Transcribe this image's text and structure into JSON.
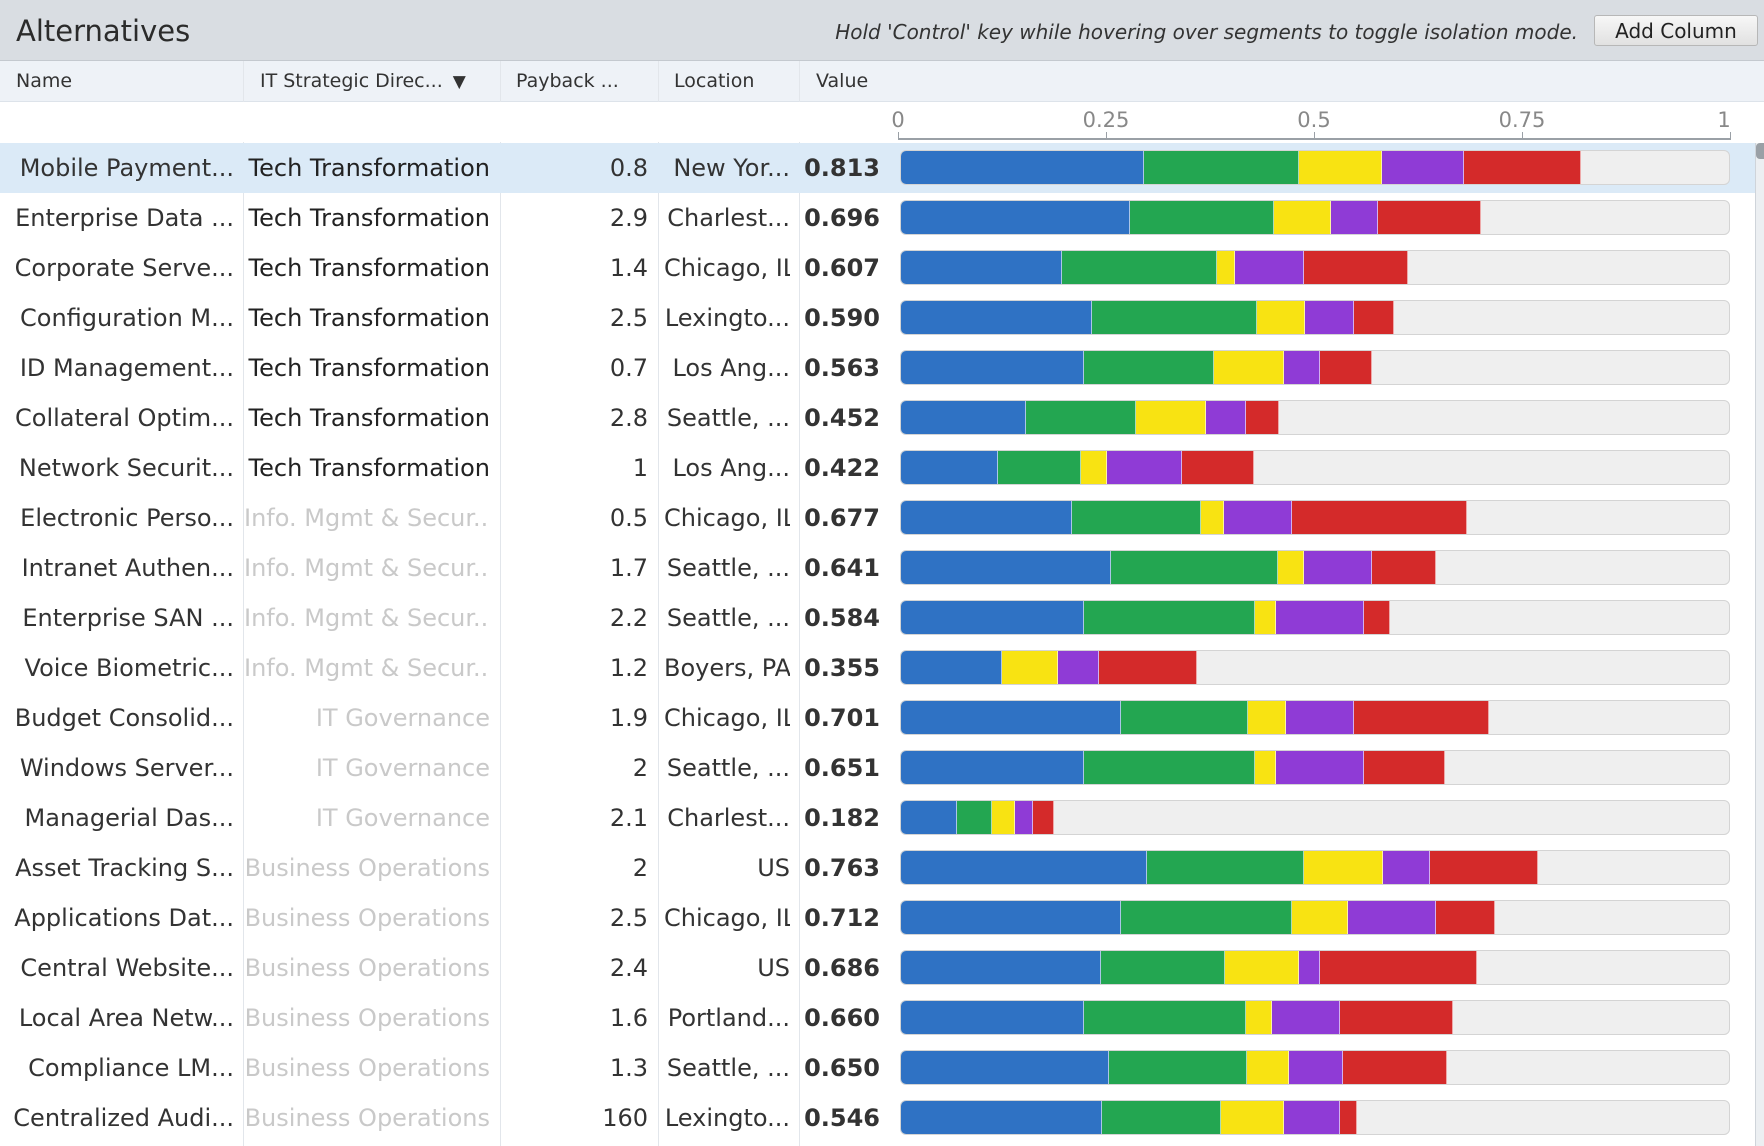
{
  "panel": {
    "title": "Alternatives",
    "hint": "Hold 'Control' key while hovering over segments to toggle isolation mode.",
    "add_column_label": "Add Column"
  },
  "columns": {
    "name": "Name",
    "direction": "IT Strategic Direc...",
    "payback": "Payback ...",
    "location": "Location",
    "value": "Value",
    "direction_sort_icon": "sort-down-triangle-icon"
  },
  "axis": {
    "ticks": [
      "0",
      "0.25",
      "0.5",
      "0.75",
      "1"
    ],
    "min": 0,
    "max": 1
  },
  "segment_colors": [
    "#2f72c4",
    "#23a651",
    "#f8e312",
    "#8f3bd6",
    "#d42a2a"
  ],
  "rows": [
    {
      "name": "Mobile Payment...",
      "direction": "Tech Transformation",
      "payback": "0.8",
      "location": "New Yor...",
      "value": "0.813",
      "selected": true,
      "segments": [
        0.293,
        0.187,
        0.099,
        0.099,
        0.141
      ]
    },
    {
      "name": "Enterprise Data ...",
      "direction": "Tech Transformation",
      "payback": "2.9",
      "location": "Charlest...",
      "value": "0.696",
      "segments": [
        0.276,
        0.173,
        0.069,
        0.057,
        0.124
      ]
    },
    {
      "name": "Corporate Serve...",
      "direction": "Tech Transformation",
      "payback": "1.4",
      "location": "Chicago, IL",
      "value": "0.607",
      "segments": [
        0.194,
        0.187,
        0.022,
        0.082,
        0.126
      ]
    },
    {
      "name": "Configuration M...",
      "direction": "Tech Transformation",
      "payback": "2.5",
      "location": "Lexingto...",
      "value": "0.590",
      "segments": [
        0.23,
        0.199,
        0.058,
        0.059,
        0.048
      ]
    },
    {
      "name": "ID Management...",
      "direction": "Tech Transformation",
      "payback": "0.7",
      "location": "Los Ang...",
      "value": "0.563",
      "segments": [
        0.22,
        0.157,
        0.084,
        0.044,
        0.062
      ]
    },
    {
      "name": "Collateral Optim...",
      "direction": "Tech Transformation",
      "payback": "2.8",
      "location": "Seattle, ...",
      "value": "0.452",
      "segments": [
        0.151,
        0.132,
        0.084,
        0.049,
        0.04
      ]
    },
    {
      "name": "Network Securit...",
      "direction": "Tech Transformation",
      "payback": "1",
      "location": "Los Ang...",
      "value": "0.422",
      "segments": [
        0.117,
        0.1,
        0.031,
        0.09,
        0.087
      ]
    },
    {
      "name": "Electronic Perso...",
      "direction": "Info. Mgmt & Secur...",
      "payback": "0.5",
      "location": "Chicago, IL",
      "value": "0.677",
      "segments": [
        0.206,
        0.156,
        0.027,
        0.082,
        0.211
      ]
    },
    {
      "name": "Intranet Authen...",
      "direction": "Info. Mgmt & Secur...",
      "payback": "1.7",
      "location": "Seattle, ...",
      "value": "0.641",
      "segments": [
        0.253,
        0.201,
        0.031,
        0.082,
        0.077
      ]
    },
    {
      "name": "Enterprise SAN ...",
      "direction": "Info. Mgmt & Secur...",
      "payback": "2.2",
      "location": "Seattle, ...",
      "value": "0.584",
      "segments": [
        0.22,
        0.207,
        0.025,
        0.106,
        0.031
      ]
    },
    {
      "name": "Voice Biometric...",
      "direction": "Info. Mgmt & Secur...",
      "payback": "1.2",
      "location": "Boyers, PA",
      "value": "0.355",
      "segments": [
        0.122,
        0,
        0.067,
        0.05,
        0.118
      ]
    },
    {
      "name": "Budget Consolid...",
      "direction": "IT Governance",
      "payback": "1.9",
      "location": "Chicago, IL",
      "value": "0.701",
      "segments": [
        0.265,
        0.153,
        0.046,
        0.082,
        0.163
      ]
    },
    {
      "name": "Windows Server...",
      "direction": "IT Governance",
      "payback": "2",
      "location": "Seattle, ...",
      "value": "0.651",
      "segments": [
        0.22,
        0.207,
        0.025,
        0.106,
        0.097
      ]
    },
    {
      "name": "Managerial Das...",
      "direction": "IT Governance",
      "payback": "2.1",
      "location": "Charlest...",
      "value": "0.182",
      "segments": [
        0.067,
        0.043,
        0.027,
        0.022,
        0.025
      ]
    },
    {
      "name": "Asset Tracking S...",
      "direction": "Business Operations",
      "payback": "2",
      "location": "US",
      "value": "0.763",
      "segments": [
        0.296,
        0.19,
        0.095,
        0.056,
        0.13
      ]
    },
    {
      "name": "Applications Dat...",
      "direction": "Business Operations",
      "payback": "2.5",
      "location": "Chicago, IL",
      "value": "0.712",
      "segments": [
        0.265,
        0.206,
        0.068,
        0.106,
        0.071
      ]
    },
    {
      "name": "Central Website...",
      "direction": "Business Operations",
      "payback": "2.4",
      "location": "US",
      "value": "0.686",
      "segments": [
        0.241,
        0.149,
        0.09,
        0.025,
        0.189
      ]
    },
    {
      "name": "Local Area Netw...",
      "direction": "Business Operations",
      "payback": "1.6",
      "location": "Portland...",
      "value": "0.660",
      "segments": [
        0.22,
        0.196,
        0.031,
        0.082,
        0.136
      ]
    },
    {
      "name": "Compliance LM...",
      "direction": "Business Operations",
      "payback": "1.3",
      "location": "Seattle, ...",
      "value": "0.650",
      "segments": [
        0.25,
        0.167,
        0.051,
        0.065,
        0.125
      ]
    },
    {
      "name": "Centralized Audi...",
      "direction": "Business Operations",
      "payback": "160",
      "location": "Lexingto...",
      "value": "0.546",
      "segments": [
        0.242,
        0.144,
        0.076,
        0.067,
        0.02
      ]
    }
  ]
}
